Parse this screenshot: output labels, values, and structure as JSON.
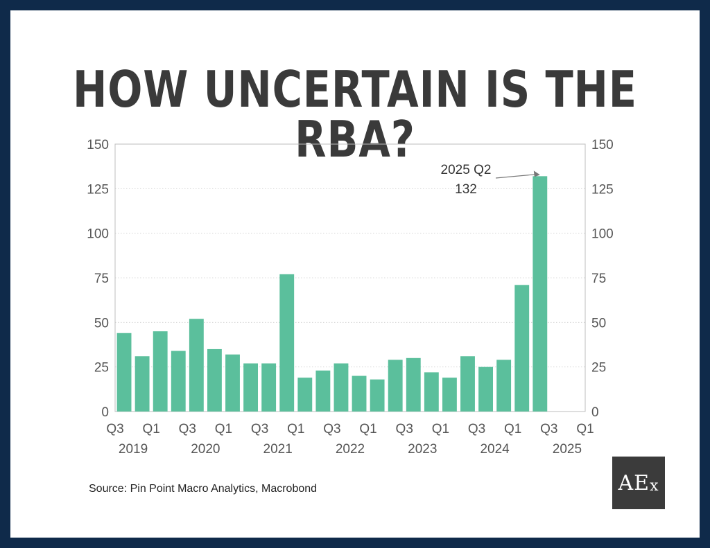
{
  "title": "HOW UNCERTAIN IS THE RBA?",
  "source": "Source: Pin Point Macro Analytics, Macrobond",
  "logo": {
    "main": "AE",
    "sub": "x"
  },
  "colors": {
    "bar": "#5bbf9c",
    "frame": "#0f2a4a",
    "text": "#555555"
  },
  "chart_data": {
    "type": "bar",
    "title": "",
    "xlabel": "",
    "ylabel": "",
    "ylim": [
      0,
      150
    ],
    "yticks": [
      0,
      25,
      50,
      75,
      100,
      125,
      150
    ],
    "grid": true,
    "dual_y_axis": true,
    "categories": [
      "2019 Q3",
      "2019 Q4",
      "2020 Q1",
      "2020 Q2",
      "2020 Q3",
      "2020 Q4",
      "2021 Q1",
      "2021 Q2",
      "2021 Q3",
      "2021 Q4",
      "2022 Q1",
      "2022 Q2",
      "2022 Q3",
      "2022 Q4",
      "2023 Q1",
      "2023 Q2",
      "2023 Q3",
      "2023 Q4",
      "2024 Q1",
      "2024 Q2",
      "2024 Q3",
      "2024 Q4",
      "2025 Q1",
      "2025 Q2"
    ],
    "values": [
      44,
      31,
      45,
      34,
      52,
      35,
      32,
      27,
      27,
      77,
      19,
      23,
      27,
      20,
      18,
      29,
      30,
      22,
      19,
      31,
      25,
      29,
      71,
      132
    ],
    "x_tick_labels": [
      {
        "quarter": "Q3",
        "year": "2019"
      },
      {
        "quarter": "Q1",
        "year": ""
      },
      {
        "quarter": "Q3",
        "year": "2020"
      },
      {
        "quarter": "Q1",
        "year": ""
      },
      {
        "quarter": "Q3",
        "year": "2021"
      },
      {
        "quarter": "Q1",
        "year": ""
      },
      {
        "quarter": "Q3",
        "year": "2022"
      },
      {
        "quarter": "Q1",
        "year": ""
      },
      {
        "quarter": "Q3",
        "year": "2023"
      },
      {
        "quarter": "Q1",
        "year": ""
      },
      {
        "quarter": "Q3",
        "year": "2024"
      },
      {
        "quarter": "Q1",
        "year": ""
      },
      {
        "quarter": "Q3",
        "year": "2025"
      },
      {
        "quarter": "Q1",
        "year": ""
      }
    ],
    "annotation": {
      "line1": "2025 Q2",
      "line2": "132",
      "target_category": "2025 Q2"
    }
  }
}
